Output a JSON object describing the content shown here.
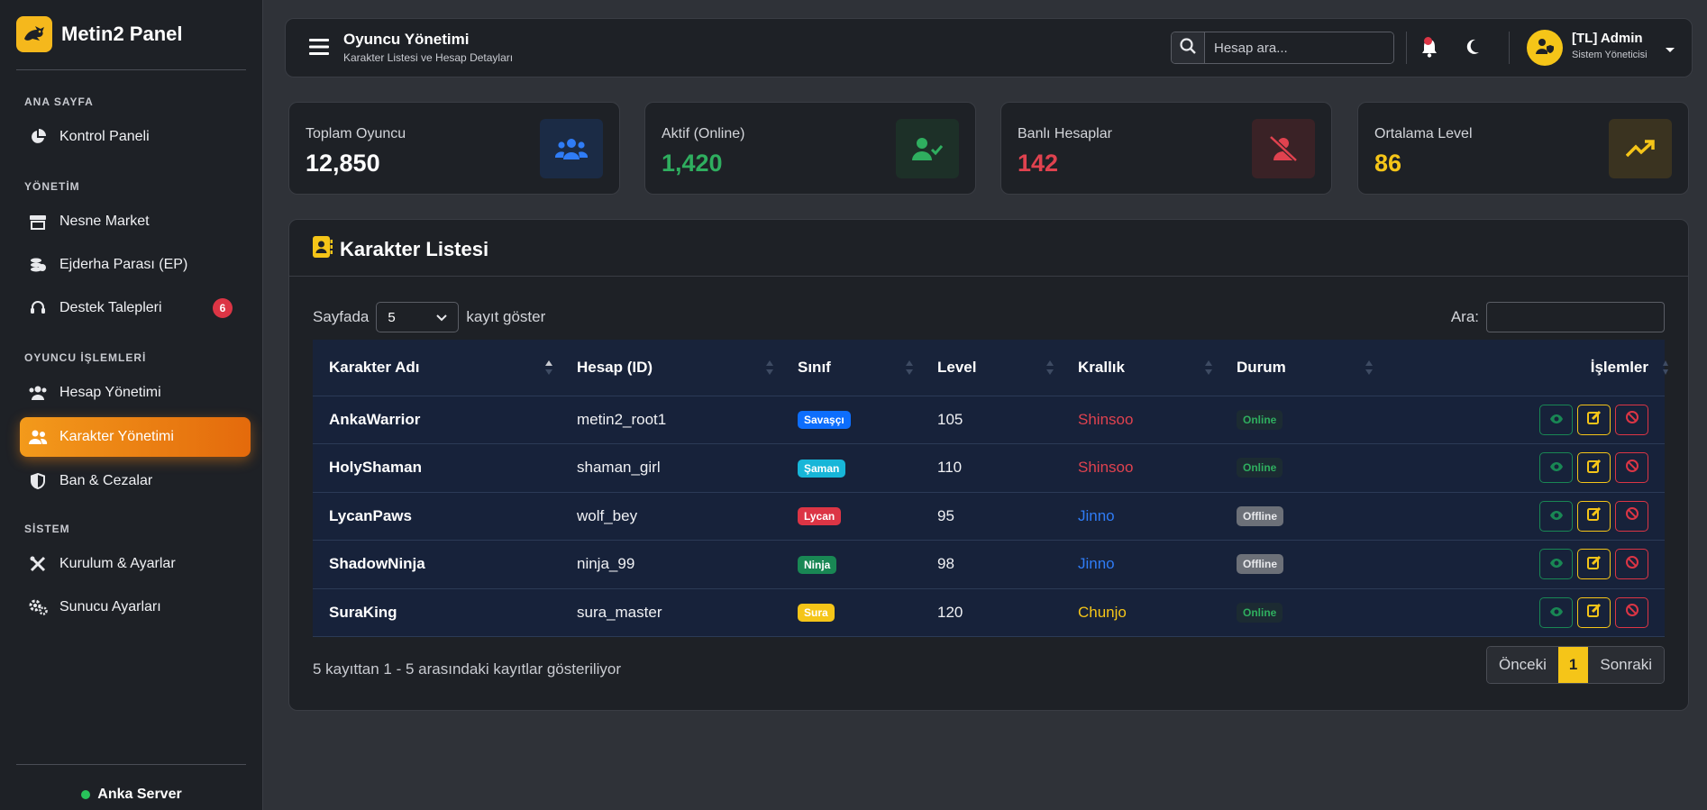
{
  "brand": {
    "name": "Metin2 Panel"
  },
  "sidebar": {
    "sections": {
      "home": "ANA SAYFA",
      "management": "YÖNETİM",
      "player_ops": "OYUNCU İŞLEMLERİ",
      "system": "SİSTEM"
    },
    "items": {
      "dashboard": "Kontrol Paneli",
      "item_shop": "Nesne Market",
      "dragon_coin": "Ejderha Parası (EP)",
      "support": "Destek Talepleri",
      "support_badge": "6",
      "accounts": "Hesap Yönetimi",
      "characters": "Karakter Yönetimi",
      "bans": "Ban & Cezalar",
      "setup": "Kurulum & Ayarlar",
      "server_settings": "Sunucu Ayarları"
    },
    "server_name": "Anka Server"
  },
  "topbar": {
    "title": "Oyuncu Yönetimi",
    "subtitle": "Karakter Listesi ve Hesap Detayları",
    "search_placeholder": "Hesap ara...",
    "user_name": "[TL] Admin",
    "user_role": "Sistem Yöneticisi"
  },
  "stats": [
    {
      "label": "Toplam Oyuncu",
      "value": "12,850",
      "color": "#ffffff",
      "icon": "users-icon"
    },
    {
      "label": "Aktif (Online)",
      "value": "1,420",
      "color": "#2fae5f",
      "icon": "user-check-icon"
    },
    {
      "label": "Banlı Hesaplar",
      "value": "142",
      "color": "#e0424f",
      "icon": "user-slash-icon"
    },
    {
      "label": "Ortalama Level",
      "value": "86",
      "color": "#f5c518",
      "icon": "trend-up-icon"
    }
  ],
  "table_card": {
    "title": "Karakter Listesi",
    "length_prefix": "Sayfada",
    "length_value": "5",
    "length_suffix": "kayıt göster",
    "filter_label": "Ara:",
    "columns": [
      "Karakter Adı",
      "Hesap (ID)",
      "Sınıf",
      "Level",
      "Krallık",
      "Durum",
      "İşlemler"
    ],
    "rows": [
      {
        "name": "AnkaWarrior",
        "account": "metin2_root1",
        "class": "Savaşçı",
        "class_color": "#0d6efd",
        "level": "105",
        "kingdom": "Shinsoo",
        "kingdom_color": "#e0424f",
        "status": "Online"
      },
      {
        "name": "HolyShaman",
        "account": "shaman_girl",
        "class": "Şaman",
        "class_color": "#17b6d8",
        "level": "110",
        "kingdom": "Shinsoo",
        "kingdom_color": "#e0424f",
        "status": "Online"
      },
      {
        "name": "LycanPaws",
        "account": "wolf_bey",
        "class": "Lycan",
        "class_color": "#dc3545",
        "level": "95",
        "kingdom": "Jinno",
        "kingdom_color": "#2f7cf6",
        "status": "Offline"
      },
      {
        "name": "ShadowNinja",
        "account": "ninja_99",
        "class": "Ninja",
        "class_color": "#198754",
        "level": "98",
        "kingdom": "Jinno",
        "kingdom_color": "#2f7cf6",
        "status": "Offline"
      },
      {
        "name": "SuraKing",
        "account": "sura_master",
        "class": "Sura",
        "class_color": "#f5c518",
        "level": "120",
        "kingdom": "Chunjo",
        "kingdom_color": "#f5c518",
        "status": "Online"
      }
    ],
    "info": "5 kayıttan 1 - 5 arasındaki kayıtlar gösteriliyor",
    "pager": {
      "prev": "Önceki",
      "current": "1",
      "next": "Sonraki"
    }
  }
}
